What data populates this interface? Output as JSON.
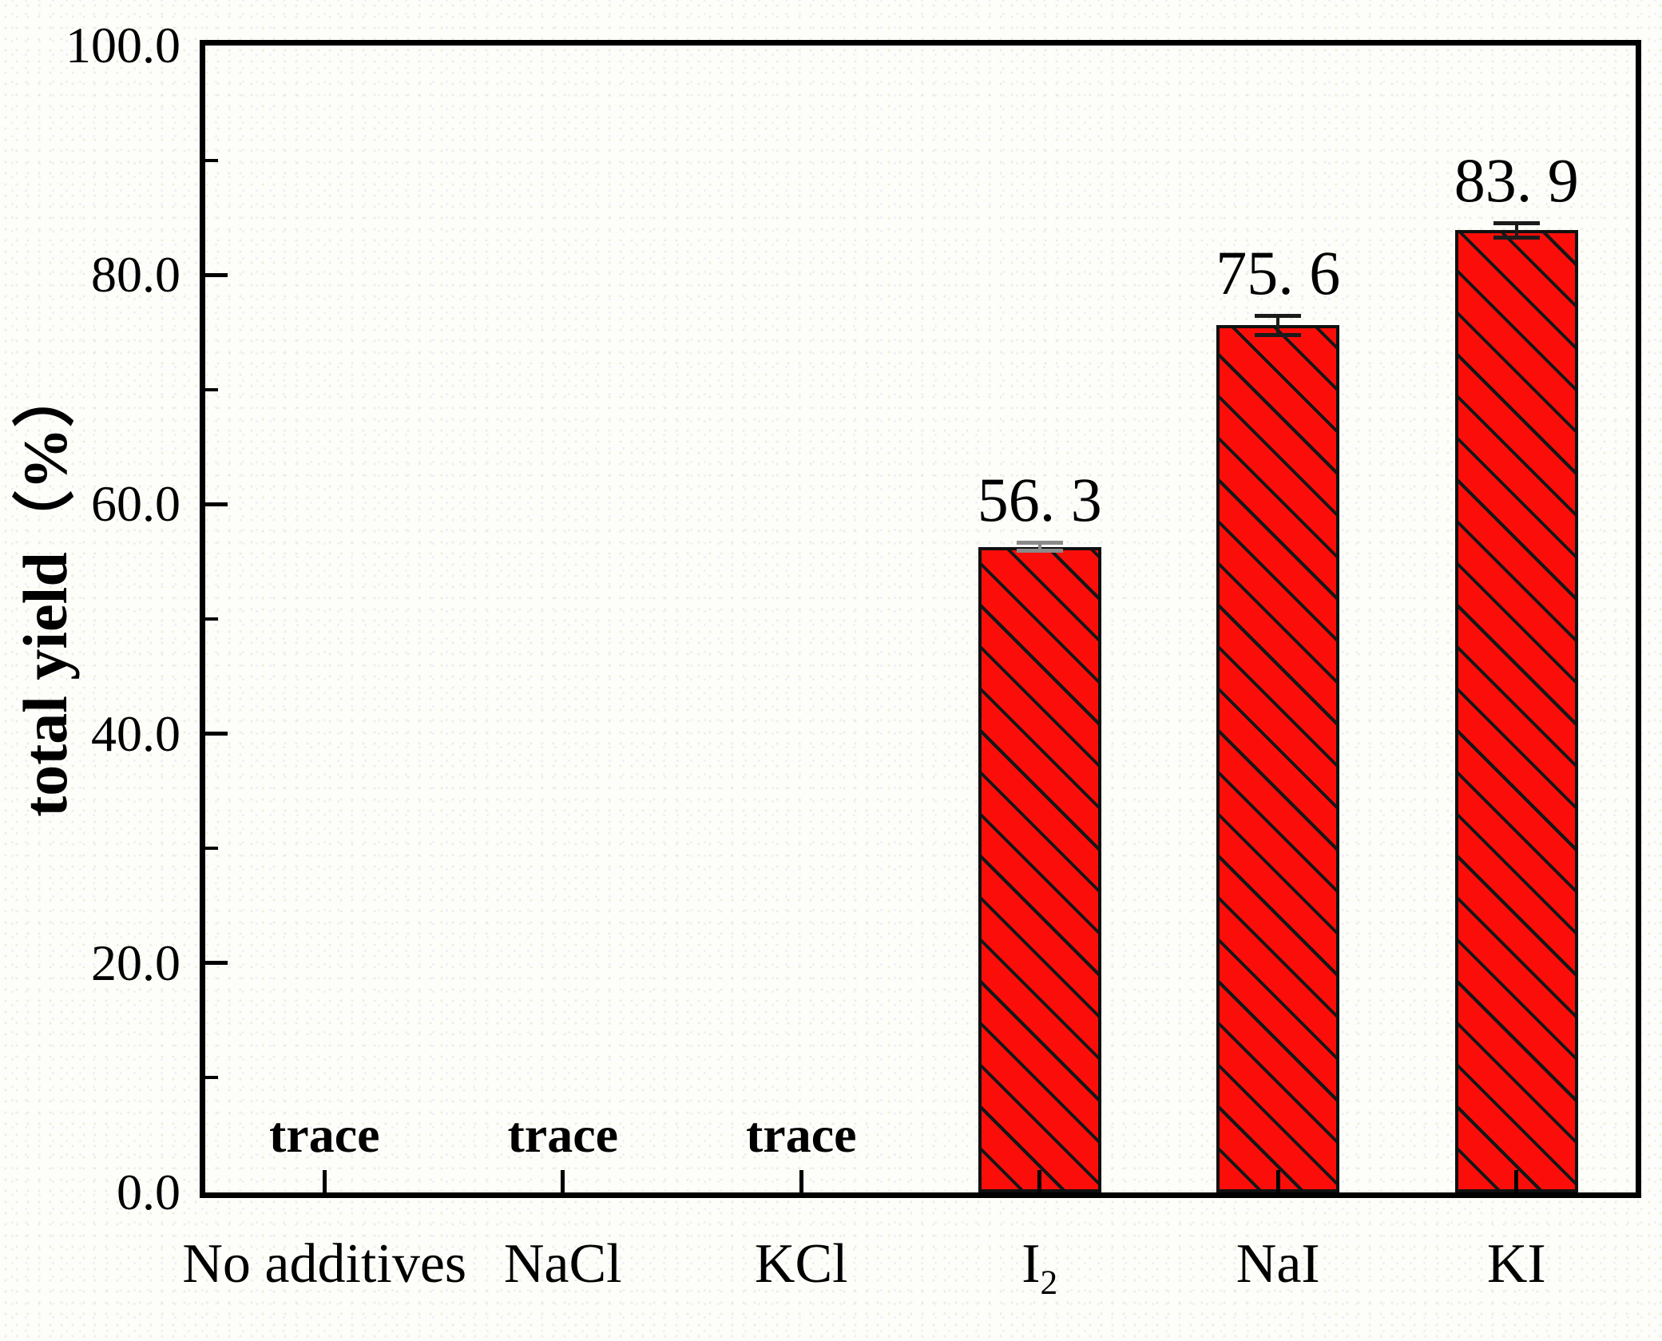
{
  "figure": {
    "background": "#fdfdfa"
  },
  "chart_data": {
    "type": "bar",
    "title": "",
    "xlabel": "",
    "ylabel": "total yield（%）",
    "ylim": [
      0,
      100
    ],
    "grid": false,
    "legend": false,
    "ytick_labels": [
      "100.0",
      "80.0",
      "60.0",
      "40.0",
      "20.0",
      "0.0"
    ],
    "ytick_values": [
      100,
      80,
      60,
      40,
      20,
      0
    ],
    "ytick_marks": [
      80,
      60,
      40,
      20
    ],
    "yminor_marks": [
      90,
      70,
      50,
      30,
      10
    ],
    "category_labels": [
      "No additives",
      "NaCl",
      "KCl",
      "I2",
      "NaI",
      "KI"
    ],
    "categories": [
      {
        "label": "No additives",
        "sub": ""
      },
      {
        "label": "NaCl",
        "sub": ""
      },
      {
        "label": "KCl",
        "sub": ""
      },
      {
        "label": "I",
        "sub": "2"
      },
      {
        "label": "NaI",
        "sub": ""
      },
      {
        "label": "KI",
        "sub": ""
      }
    ],
    "values": [
      null,
      null,
      null,
      56.3,
      75.6,
      83.9
    ],
    "trace_labels": [
      {
        "category_index": 0,
        "text": "trace"
      },
      {
        "category_index": 1,
        "text": "trace"
      },
      {
        "category_index": 2,
        "text": "trace"
      }
    ],
    "bars": [
      {
        "category_index": 3,
        "value": 56.3,
        "label": "56. 3",
        "error": 0.5,
        "error_color": "#8b8b8b"
      },
      {
        "category_index": 4,
        "value": 75.6,
        "label": "75. 6",
        "error": 1.0,
        "error_color": "#1b1b1b"
      },
      {
        "category_index": 5,
        "value": 83.9,
        "label": "83. 9",
        "error": 0.8,
        "error_color": "#1b1b1b"
      }
    ],
    "colors": {
      "bar_fill": "#fb0e0a",
      "bar_border": "#101010",
      "hatch": "#161616",
      "axis": "#000000",
      "text": "#000000"
    }
  }
}
